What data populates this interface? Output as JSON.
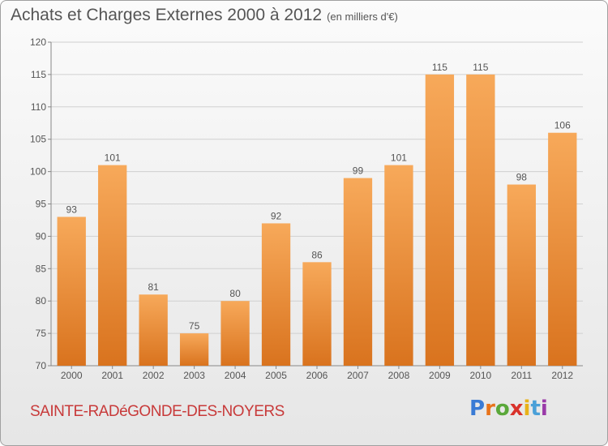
{
  "title": "Achats et Charges Externes 2000 à 2012",
  "unit_label": "(en milliers d'€)",
  "commune": "SAINTE-RADéGONDE-DES-NOYERS",
  "logo": {
    "letters": [
      "P",
      "r",
      "o",
      "x",
      "i",
      "t",
      "i"
    ],
    "colors": [
      "#3a7bd5",
      "#e8731a",
      "#5aa83a",
      "#d9322b",
      "#e8b21a",
      "#4aa0d8",
      "#9a3aa8"
    ]
  },
  "colors": {
    "bar_top": "#f7a95a",
    "bar_bottom": "#d9731e",
    "axis_text": "#555555",
    "grid": "#d0d0d0"
  },
  "chart_data": {
    "type": "bar",
    "title": "Achats et Charges Externes 2000 à 2012",
    "subtitle": "(en milliers d'€)",
    "categories": [
      "2000",
      "2001",
      "2002",
      "2003",
      "2004",
      "2005",
      "2006",
      "2007",
      "2008",
      "2009",
      "2010",
      "2011",
      "2012"
    ],
    "values": [
      93,
      101,
      81,
      75,
      80,
      92,
      86,
      99,
      101,
      115,
      115,
      98,
      106
    ],
    "ylim": [
      70,
      120
    ],
    "yticks": [
      70,
      75,
      80,
      85,
      90,
      95,
      100,
      105,
      110,
      115,
      120
    ],
    "grid": true,
    "xlabel": "",
    "ylabel": ""
  }
}
